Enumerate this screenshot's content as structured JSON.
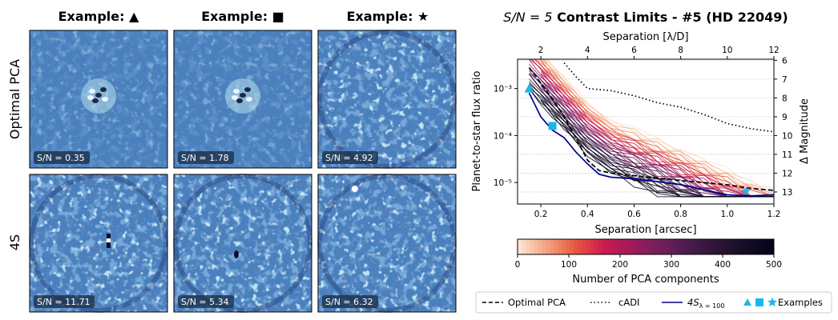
{
  "panels": {
    "col_titles": [
      "Example: ▲",
      "Example: ■",
      "Example: ★"
    ],
    "row_labels": [
      "Optimal PCA",
      "4S"
    ],
    "snr_labels": [
      [
        "S/N = 0.35",
        "S/N = 1.78",
        "S/N = 4.92"
      ],
      [
        "S/N = 11.71",
        "S/N = 5.34",
        "S/N = 6.32"
      ]
    ],
    "colormap": {
      "low": "#1b2f6b",
      "mid": "#4a80bd",
      "high": "#bfe6f2",
      "dark": "#0a1030"
    }
  },
  "chart_data": {
    "type": "line",
    "title_math": "S/N = 5",
    "title_text": " Contrast Limits - #5 (HD 22049)",
    "xlabel": "Separation [arcsec]",
    "ylabel": "Planet-to-star flux ratio",
    "top_xlabel": "Separation [λ/D]",
    "right_ylabel": "Δ Magnitude",
    "xlim": [
      0.1,
      1.2
    ],
    "ylim": [
      3.5e-06,
      0.0042
    ],
    "yscale": "log",
    "x_ticks": [
      0.2,
      0.4,
      0.6,
      0.8,
      1.0,
      1.2
    ],
    "x_tick_labels": [
      "0.2",
      "0.4",
      "0.6",
      "0.8",
      "1.0",
      "1.2"
    ],
    "y_ticks": [
      1e-05,
      0.0001,
      0.001
    ],
    "y_tick_labels": [
      "10⁻⁵",
      "10⁻⁴",
      "10⁻³"
    ],
    "top_ticks_arcsec": [
      0.2,
      0.4,
      0.6,
      0.8,
      1.0,
      1.2
    ],
    "top_tick_labels": [
      "2",
      "4",
      "6",
      "8",
      "10",
      "12"
    ],
    "right_ticks_mag": [
      6,
      7,
      8,
      9,
      10,
      11,
      12,
      13
    ],
    "right_tick_labels": [
      "6",
      "7",
      "8",
      "9",
      "10",
      "11",
      "12",
      "13"
    ],
    "series": [
      {
        "name": "Optimal PCA",
        "style": "dashed",
        "color": "#000000",
        "x": [
          0.15,
          0.2,
          0.25,
          0.3,
          0.35,
          0.4,
          0.45,
          0.5,
          0.6,
          0.7,
          0.8,
          0.9,
          1.0,
          1.1,
          1.2
        ],
        "y": [
          0.0028,
          0.0013,
          0.0006,
          0.00025,
          9e-05,
          3e-05,
          1.8e-05,
          1.6e-05,
          1.4e-05,
          1.25e-05,
          1.1e-05,
          1e-05,
          9e-06,
          7.5e-06,
          6.8e-06
        ]
      },
      {
        "name": "cADI",
        "style": "dotted",
        "color": "#000000",
        "x": [
          0.3,
          0.35,
          0.4,
          0.5,
          0.6,
          0.7,
          0.8,
          0.9,
          1.0,
          1.1,
          1.2
        ],
        "y": [
          0.0035,
          0.0018,
          0.001,
          0.0009,
          0.0007,
          0.0005,
          0.0004,
          0.00028,
          0.00018,
          0.00014,
          0.00012
        ]
      },
      {
        "name": "4S (λ = 100)",
        "style": "solid",
        "color": "#00008b",
        "x": [
          0.15,
          0.2,
          0.25,
          0.3,
          0.35,
          0.4,
          0.45,
          0.5,
          0.6,
          0.7,
          0.8,
          0.9,
          1.0,
          1.1,
          1.2
        ],
        "y": [
          0.0008,
          0.00025,
          0.00013,
          9e-05,
          4.5e-05,
          2.5e-05,
          1.5e-05,
          1.3e-05,
          1.2e-05,
          1.05e-05,
          9e-06,
          7e-06,
          5.5e-06,
          5.2e-06,
          5.5e-06
        ]
      }
    ],
    "examples": [
      {
        "marker": "triangle",
        "x": 0.15,
        "y": 0.001
      },
      {
        "marker": "square",
        "x": 0.25,
        "y": 0.00016
      },
      {
        "marker": "star",
        "x": 1.08,
        "y": 6.5e-06
      }
    ],
    "example_color": "#1ab8ea",
    "colorbar": {
      "label": "Number of PCA components",
      "range": [
        0,
        500
      ],
      "ticks": [
        0,
        100,
        200,
        300,
        400,
        500
      ],
      "tick_labels": [
        "0",
        "100",
        "200",
        "300",
        "400",
        "500"
      ],
      "colors": [
        "#fbe3cf",
        "#f2a17f",
        "#e8573f",
        "#cb1b4f",
        "#a11a5b",
        "#731f5c",
        "#4b1c4f",
        "#2e1538",
        "#150e24",
        "#03051a"
      ]
    },
    "legend": {
      "placement": "bottom",
      "entries": [
        "Optimal PCA",
        "cADI",
        "4S",
        "Examples"
      ]
    },
    "grid": "horizontal-dotted"
  }
}
